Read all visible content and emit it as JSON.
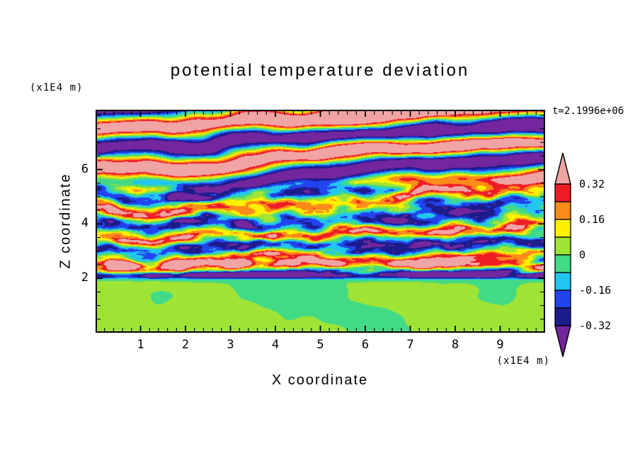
{
  "page": {
    "background": "#ffffff"
  },
  "title": {
    "text": "potential temperature deviation"
  },
  "annotations": {
    "time": "t=2.1996e+06",
    "y_units": "(x1E4 m)",
    "x_units": "(x1E4 m)"
  },
  "axes": {
    "x": {
      "label": "X coordinate",
      "min": 0,
      "max": 10,
      "major_ticks": [
        1,
        2,
        3,
        4,
        5,
        6,
        7,
        8,
        9
      ],
      "minor_step": 0.2
    },
    "y": {
      "label": "Z coordinate",
      "min": 0,
      "max": 8.2,
      "major_ticks": [
        2,
        4,
        6
      ],
      "minor_step": 0.5
    }
  },
  "colorbar": {
    "labels": [
      "0.32",
      "0.16",
      "0",
      "-0.16",
      "-0.32"
    ],
    "label_levels": [
      0.32,
      0.16,
      0,
      -0.16,
      -0.32
    ],
    "levels": [
      0.32,
      0.24,
      0.16,
      0.08,
      0,
      -0.08,
      -0.16,
      -0.24,
      -0.32
    ],
    "colors": {
      "above_max": "#F0A4A4",
      "segments": [
        "#EE1C25",
        "#FF8C1A",
        "#FFF100",
        "#9FE435",
        "#43DA86",
        "#22C5F0",
        "#2244EE",
        "#1C1C8C"
      ],
      "below_min": "#73269E"
    }
  },
  "chart_data": {
    "type": "heatmap",
    "title": "potential temperature deviation",
    "xlabel": "X coordinate (x1E4 m)",
    "ylabel": "Z coordinate (x1E4 m)",
    "x_range": [
      0,
      10
    ],
    "y_range": [
      0,
      8.2
    ],
    "annotation": "t=2.1996e+06",
    "contour_levels": [
      -0.32,
      -0.24,
      -0.16,
      -0.08,
      0,
      0.08,
      0.16,
      0.24,
      0.32
    ],
    "legend_position": "right",
    "structure": {
      "bottom_region": "z < 2: smooth large convective blobs with values near 0 (green / yellow-green), sharp navy line at the region top near z = 2.1",
      "middle_region": "2 < z < 5.3: fine horizontally-elongated turbulent layers spanning the full color range (navy/blue/cyan through yellow/orange/red)",
      "top_region": "z > 5.3: broad stratified wave bands tilted slightly upward to the right, alternating above +0.32 (pink) and below -0.32 (purple)"
    }
  }
}
